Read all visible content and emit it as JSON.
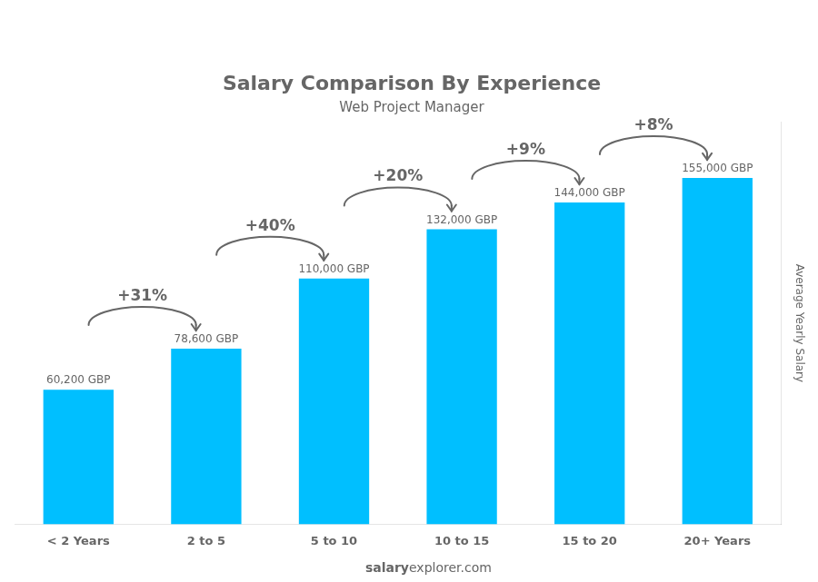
{
  "chart_data": {
    "type": "bar",
    "title": "Salary Comparison By Experience",
    "subtitle": "Web Project Manager",
    "categories": [
      "< 2 Years",
      "2 to 5",
      "5 to 10",
      "10 to 15",
      "15 to 20",
      "20+ Years"
    ],
    "values": [
      60200,
      78600,
      110000,
      132000,
      144000,
      155000
    ],
    "value_labels": [
      "60,200 GBP",
      "78,600 GBP",
      "110,000 GBP",
      "132,000 GBP",
      "144,000 GBP",
      "155,000 GBP"
    ],
    "data_labels": true,
    "annotations": [
      "+31%",
      "+40%",
      "+20%",
      "+9%",
      "+8%"
    ],
    "ylabel": "Average Yearly Salary",
    "footer": [
      "salary",
      "explorer.com"
    ],
    "color": "#00bfff",
    "ylim": [
      0,
      180000
    ],
    "grid": false,
    "tick_labels": "x"
  }
}
